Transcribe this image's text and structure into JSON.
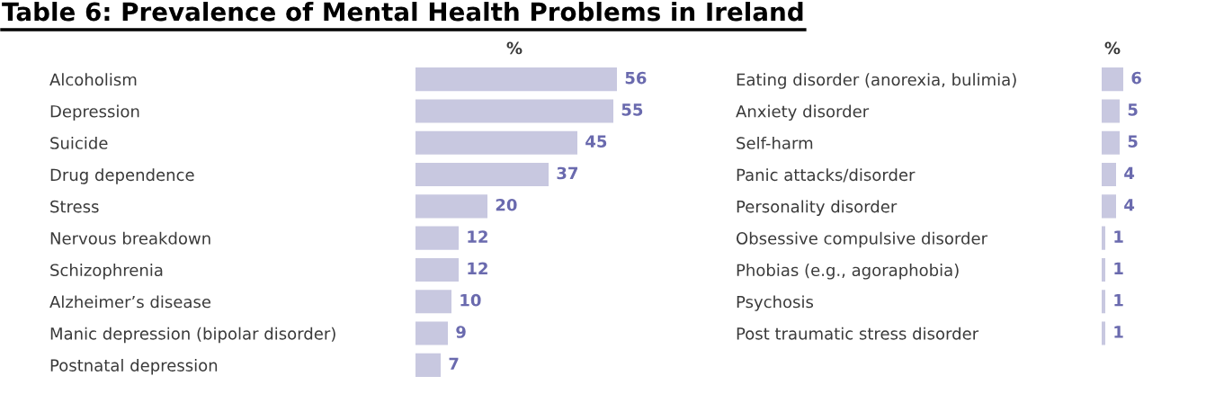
{
  "chart_data": [
    {
      "type": "bar",
      "orientation": "horizontal",
      "title": "Table 6: Prevalence of Mental Health Problems in Ireland",
      "xlabel": "%",
      "tick_labels": "y",
      "data_labels": true,
      "color": "#c8c8e0",
      "categories": [
        "Alcoholism",
        "Depression",
        "Suicide",
        "Drug dependence",
        "Stress",
        "Nervous breakdown",
        "Schizophrenia",
        "Alzheimer’s disease",
        "Manic depression (bipolar disorder)",
        "Postnatal depression"
      ],
      "values": [
        56,
        55,
        45,
        37,
        20,
        12,
        12,
        10,
        9,
        7
      ]
    },
    {
      "type": "bar",
      "orientation": "horizontal",
      "xlabel": "%",
      "tick_labels": "y",
      "data_labels": true,
      "color": "#c8c8e0",
      "categories": [
        "Eating disorder (anorexia, bulimia)",
        "Anxiety disorder",
        "Self-harm",
        "Panic attacks/disorder",
        "Personality disorder",
        "Obsessive compulsive disorder",
        "Phobias (e.g., agoraphobia)",
        "Psychosis",
        "Post traumatic stress disorder"
      ],
      "values": [
        6,
        5,
        5,
        4,
        4,
        1,
        1,
        1,
        1
      ]
    }
  ]
}
